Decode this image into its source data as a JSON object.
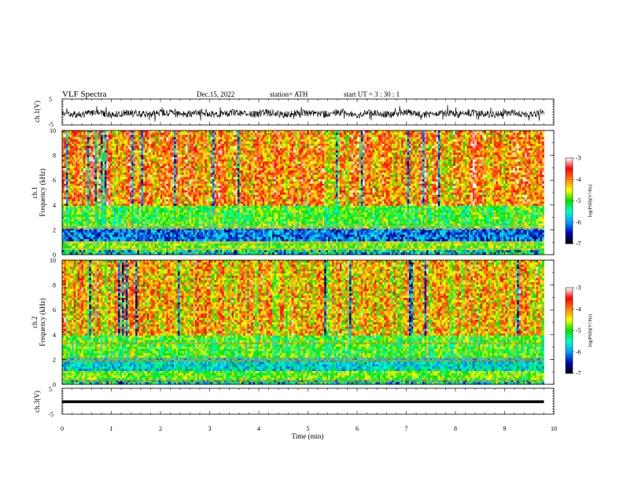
{
  "header": {
    "title": "VLF  Spectra",
    "date": "Dec.15, 2022",
    "station": "station= ATH",
    "start_ut": "start  UT  =    3  : 30 : 1"
  },
  "chart_data": {
    "type": "heatmap",
    "xlabel": "Time  (min)",
    "xlim": [
      0,
      10
    ],
    "x_ticks": [
      "0",
      "1",
      "2",
      "3",
      "4",
      "5",
      "6",
      "7",
      "8",
      "9",
      "10"
    ],
    "panels": [
      {
        "id": "ch1-waveform",
        "type": "line",
        "ylabel": "ch.1(V)",
        "ylim": [
          -5,
          5
        ],
        "y_ticks": [
          "5",
          "-5"
        ],
        "trace_color": "#000000",
        "data_end_min": 9.8
      },
      {
        "id": "ch1-spectrogram",
        "type": "heatmap",
        "ylabel_top": "ch.1",
        "ylabel": "Frequency  (kHz)",
        "ylim": [
          0,
          10
        ],
        "y_ticks": [
          "0",
          "2",
          "4",
          "6",
          "8",
          "10"
        ],
        "colorbar": {
          "label": "log(PSD)(V²/Hz)",
          "range": [
            -7,
            -3
          ],
          "ticks": [
            "-3",
            "-4",
            "-5",
            "-6",
            "-7"
          ],
          "colors": [
            "#000000",
            "#0000c0",
            "#00a0ff",
            "#00ffc8",
            "#00e000",
            "#ffff00",
            "#ff8000",
            "#ff0000",
            "#ffffff"
          ]
        },
        "data_end_min": 9.8
      },
      {
        "id": "ch2-spectrogram",
        "type": "heatmap",
        "ylabel_top": "ch.2",
        "ylabel": "Frequency  (kHz)",
        "ylim": [
          0,
          10
        ],
        "y_ticks": [
          "0",
          "2",
          "4",
          "6",
          "8",
          "10"
        ],
        "colorbar": {
          "label": "log(PSD)(V²/Hz)",
          "range": [
            -7,
            -3
          ],
          "ticks": [
            "-3",
            "-4",
            "-5",
            "-6",
            "-7"
          ],
          "colors": [
            "#000000",
            "#0000c0",
            "#00a0ff",
            "#00ffc8",
            "#00e000",
            "#ffff00",
            "#ff8000",
            "#ff0000",
            "#ffffff"
          ]
        },
        "data_end_min": 9.8
      },
      {
        "id": "ch3-waveform",
        "type": "line",
        "ylabel": "ch.3(V)",
        "ylim": [
          -5,
          5
        ],
        "y_ticks": [
          "5",
          "-5"
        ],
        "trace_color": "#000000",
        "data_end_min": 9.8
      }
    ]
  }
}
